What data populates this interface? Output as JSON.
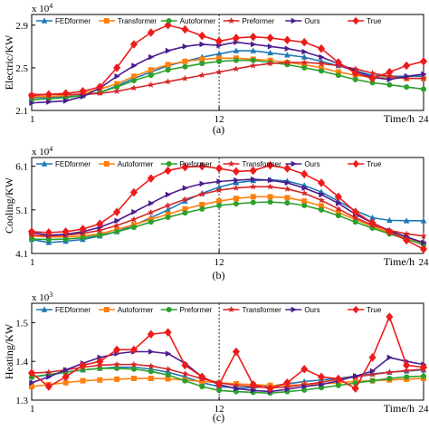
{
  "chart_data": [
    {
      "type": "line",
      "id": "a",
      "caption": "(a)",
      "ylabel": "Electric/KW",
      "xlabel": "Time/h",
      "multiplier": "x 10",
      "multiplier_exp": "4",
      "ylim": [
        2.1,
        3.0
      ],
      "yticks": [
        "2.1",
        "2.5",
        "2.9"
      ],
      "ytick_values": [
        2.1,
        2.5,
        2.9
      ],
      "xlim": [
        1,
        24
      ],
      "xticks": [
        "1",
        "12",
        "24"
      ],
      "xtick_values": [
        1,
        12,
        24
      ],
      "x": [
        1,
        2,
        3,
        4,
        5,
        6,
        7,
        8,
        9,
        10,
        11,
        12,
        13,
        14,
        15,
        16,
        17,
        18,
        19,
        20,
        21,
        22,
        23,
        24
      ],
      "series": [
        {
          "name": "FEDformer",
          "color": "#1f77b4",
          "marker": "triangle-up",
          "values": [
            2.22,
            2.22,
            2.23,
            2.24,
            2.27,
            2.33,
            2.4,
            2.46,
            2.52,
            2.56,
            2.6,
            2.63,
            2.66,
            2.66,
            2.64,
            2.62,
            2.6,
            2.56,
            2.52,
            2.47,
            2.43,
            2.42,
            2.42,
            2.42
          ]
        },
        {
          "name": "Transformer",
          "color": "#ff7f0e",
          "marker": "square",
          "values": [
            2.23,
            2.23,
            2.24,
            2.26,
            2.3,
            2.35,
            2.42,
            2.48,
            2.53,
            2.56,
            2.58,
            2.59,
            2.59,
            2.58,
            2.57,
            2.55,
            2.53,
            2.5,
            2.46,
            2.43,
            2.41,
            2.41,
            2.4,
            2.4
          ]
        },
        {
          "name": "Autoformer",
          "color": "#2ca02c",
          "marker": "circle",
          "values": [
            2.2,
            2.21,
            2.22,
            2.24,
            2.27,
            2.32,
            2.38,
            2.43,
            2.48,
            2.51,
            2.54,
            2.56,
            2.57,
            2.57,
            2.55,
            2.53,
            2.5,
            2.47,
            2.43,
            2.39,
            2.36,
            2.34,
            2.32,
            2.3
          ]
        },
        {
          "name": "Preformer",
          "color": "#d62728",
          "marker": "star",
          "values": [
            2.25,
            2.25,
            2.25,
            2.25,
            2.26,
            2.28,
            2.31,
            2.34,
            2.37,
            2.4,
            2.43,
            2.46,
            2.49,
            2.52,
            2.54,
            2.55,
            2.55,
            2.54,
            2.52,
            2.49,
            2.45,
            2.42,
            2.4,
            2.4
          ]
        },
        {
          "name": "Ours",
          "color": "#4b1c8f",
          "marker": "triangle-right",
          "values": [
            2.17,
            2.18,
            2.19,
            2.23,
            2.31,
            2.42,
            2.52,
            2.6,
            2.66,
            2.7,
            2.72,
            2.71,
            2.74,
            2.72,
            2.7,
            2.68,
            2.65,
            2.6,
            2.54,
            2.47,
            2.41,
            2.39,
            2.42,
            2.44
          ]
        },
        {
          "name": "True",
          "color": "#ee1b1b",
          "marker": "diamond",
          "values": [
            2.24,
            2.25,
            2.26,
            2.28,
            2.32,
            2.5,
            2.72,
            2.83,
            2.9,
            2.86,
            2.8,
            2.75,
            2.78,
            2.79,
            2.78,
            2.76,
            2.74,
            2.68,
            2.55,
            2.45,
            2.4,
            2.46,
            2.52,
            2.56
          ]
        }
      ]
    },
    {
      "type": "line",
      "id": "b",
      "caption": "(b)",
      "ylabel": "Cooling/KW",
      "xlabel": "Time/h",
      "multiplier": "x 10",
      "multiplier_exp": "4",
      "ylim": [
        4.1,
        6.3
      ],
      "yticks": [
        "4.1",
        "5.1",
        "6.1"
      ],
      "ytick_values": [
        4.1,
        5.1,
        6.1
      ],
      "xlim": [
        1,
        24
      ],
      "xticks": [
        "1",
        "12",
        "24"
      ],
      "xtick_values": [
        1,
        12,
        24
      ],
      "x": [
        1,
        2,
        3,
        4,
        5,
        6,
        7,
        8,
        9,
        10,
        11,
        12,
        13,
        14,
        15,
        16,
        17,
        18,
        19,
        20,
        21,
        22,
        23,
        24
      ],
      "series": [
        {
          "name": "FEDformer",
          "color": "#1f77b4",
          "marker": "triangle-up",
          "values": [
            4.42,
            4.35,
            4.38,
            4.42,
            4.5,
            4.6,
            4.75,
            4.92,
            5.1,
            5.3,
            5.48,
            5.62,
            5.72,
            5.77,
            5.79,
            5.76,
            5.66,
            5.51,
            5.3,
            5.08,
            4.92,
            4.86,
            4.85,
            4.85
          ]
        },
        {
          "name": "Autoformer",
          "color": "#ff7f0e",
          "marker": "square",
          "values": [
            4.5,
            4.48,
            4.48,
            4.5,
            4.55,
            4.65,
            4.76,
            4.88,
            5.0,
            5.12,
            5.22,
            5.3,
            5.36,
            5.4,
            5.4,
            5.38,
            5.3,
            5.19,
            5.04,
            4.88,
            4.72,
            4.58,
            4.45,
            4.32
          ]
        },
        {
          "name": "Preformer",
          "color": "#2ca02c",
          "marker": "circle",
          "values": [
            4.43,
            4.42,
            4.43,
            4.46,
            4.52,
            4.6,
            4.7,
            4.82,
            4.93,
            5.03,
            5.12,
            5.2,
            5.24,
            5.27,
            5.28,
            5.26,
            5.2,
            5.1,
            4.97,
            4.82,
            4.68,
            4.55,
            4.43,
            4.3
          ]
        },
        {
          "name": "Transformer",
          "color": "#d62728",
          "marker": "star",
          "values": [
            4.52,
            4.5,
            4.52,
            4.56,
            4.63,
            4.74,
            4.88,
            5.04,
            5.2,
            5.34,
            5.46,
            5.55,
            5.6,
            5.63,
            5.63,
            5.58,
            5.48,
            5.32,
            5.12,
            4.92,
            4.75,
            4.63,
            4.55,
            4.5
          ]
        },
        {
          "name": "Ours",
          "color": "#4b1c8f",
          "marker": "triangle-right",
          "values": [
            4.58,
            4.52,
            4.54,
            4.6,
            4.7,
            4.85,
            5.05,
            5.25,
            5.45,
            5.6,
            5.7,
            5.75,
            5.78,
            5.8,
            5.78,
            5.72,
            5.6,
            5.45,
            5.25,
            5.0,
            4.8,
            4.62,
            4.48,
            4.35
          ]
        },
        {
          "name": "True",
          "color": "#ee1b1b",
          "marker": "diamond",
          "values": [
            4.6,
            4.58,
            4.6,
            4.66,
            4.78,
            5.05,
            5.5,
            5.82,
            6.0,
            6.08,
            6.1,
            6.05,
            5.98,
            6.0,
            6.12,
            6.05,
            5.92,
            5.72,
            5.4,
            5.05,
            4.8,
            4.6,
            4.4,
            4.2
          ]
        }
      ]
    },
    {
      "type": "line",
      "id": "c",
      "caption": "(c)",
      "ylabel": "Heating/KW",
      "xlabel": "Time/h",
      "multiplier": "x 10",
      "multiplier_exp": "3",
      "ylim": [
        1.3,
        1.55
      ],
      "yticks": [
        "1.3",
        "1.4",
        "1.5"
      ],
      "ytick_values": [
        1.3,
        1.4,
        1.5
      ],
      "xlim": [
        1,
        24
      ],
      "xticks": [
        "1",
        "12",
        "24"
      ],
      "xtick_values": [
        1,
        12,
        24
      ],
      "x": [
        1,
        2,
        3,
        4,
        5,
        6,
        7,
        8,
        9,
        10,
        11,
        12,
        13,
        14,
        15,
        16,
        17,
        18,
        19,
        20,
        21,
        22,
        23,
        24
      ],
      "series": [
        {
          "name": "FEDformer",
          "color": "#1f77b4",
          "marker": "triangle-up",
          "values": [
            1.36,
            1.365,
            1.372,
            1.378,
            1.382,
            1.385,
            1.385,
            1.38,
            1.372,
            1.36,
            1.345,
            1.335,
            1.332,
            1.332,
            1.336,
            1.342,
            1.348,
            1.352,
            1.356,
            1.362,
            1.368,
            1.372,
            1.375,
            1.378
          ]
        },
        {
          "name": "Autoformer",
          "color": "#ff7f0e",
          "marker": "square",
          "values": [
            1.335,
            1.34,
            1.345,
            1.35,
            1.352,
            1.354,
            1.356,
            1.356,
            1.355,
            1.352,
            1.348,
            1.345,
            1.342,
            1.34,
            1.338,
            1.338,
            1.34,
            1.342,
            1.345,
            1.348,
            1.35,
            1.352,
            1.354,
            1.356
          ]
        },
        {
          "name": "Preformer",
          "color": "#2ca02c",
          "marker": "circle",
          "values": [
            1.36,
            1.366,
            1.372,
            1.378,
            1.382,
            1.382,
            1.38,
            1.374,
            1.365,
            1.35,
            1.335,
            1.325,
            1.322,
            1.32,
            1.318,
            1.322,
            1.326,
            1.332,
            1.338,
            1.344,
            1.35,
            1.356,
            1.36,
            1.362
          ]
        },
        {
          "name": "Transformer",
          "color": "#d62728",
          "marker": "star",
          "values": [
            1.37,
            1.372,
            1.378,
            1.385,
            1.39,
            1.392,
            1.392,
            1.388,
            1.38,
            1.368,
            1.355,
            1.345,
            1.338,
            1.335,
            1.332,
            1.334,
            1.34,
            1.346,
            1.354,
            1.36,
            1.366,
            1.372,
            1.376,
            1.38
          ]
        },
        {
          "name": "Ours",
          "color": "#4b1c8f",
          "marker": "triangle-right",
          "values": [
            1.345,
            1.36,
            1.378,
            1.395,
            1.41,
            1.42,
            1.425,
            1.425,
            1.42,
            1.395,
            1.36,
            1.34,
            1.33,
            1.325,
            1.322,
            1.328,
            1.335,
            1.34,
            1.35,
            1.362,
            1.375,
            1.41,
            1.4,
            1.392
          ]
        },
        {
          "name": "True",
          "color": "#ee1b1b",
          "marker": "diamond",
          "values": [
            1.37,
            1.335,
            1.36,
            1.39,
            1.4,
            1.43,
            1.43,
            1.47,
            1.475,
            1.39,
            1.36,
            1.34,
            1.425,
            1.34,
            1.33,
            1.345,
            1.38,
            1.36,
            1.355,
            1.33,
            1.41,
            1.515,
            1.39,
            1.385
          ]
        }
      ]
    }
  ]
}
